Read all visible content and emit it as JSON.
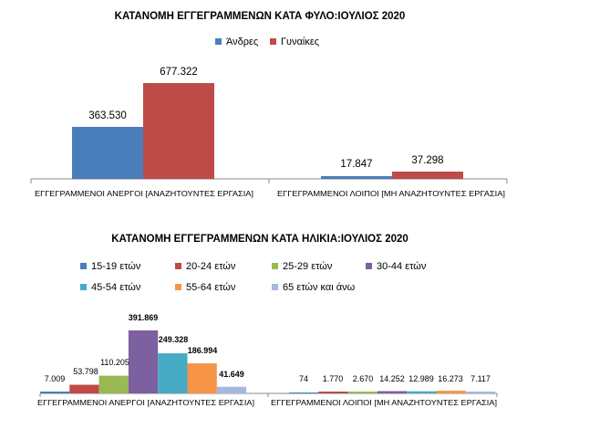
{
  "chart_data": [
    {
      "type": "bar",
      "title": "ΚΑΤΑΝΟΜΗ ΕΓΓΕΓΡΑΜΜΕΝΩΝ ΚΑΤΑ ΦΥΛΟ:ΙΟΥΛΙΟΣ  2020",
      "categories": [
        "ΕΓΓΕΓΡΑΜΜΕΝΟΙ ΑΝΕΡΓΟΙ [ΑΝΑΖΗΤΟΥΝΤΕΣ ΕΡΓΑΣΙΑ]",
        "ΕΓΓΕΓΡΑΜΜΕΝΟΙ ΛΟΙΠΟΙ [ΜΗ ΑΝΑΖΗΤΟΥΝΤΕΣ ΕΡΓΑΣΙΑ]"
      ],
      "series": [
        {
          "name": "Άνδρες",
          "values": [
            363530,
            17847
          ],
          "labels": [
            "363.530",
            "17.847"
          ],
          "color": "#4a7ebb"
        },
        {
          "name": "Γυναίκες",
          "values": [
            677322,
            37298
          ],
          "labels": [
            "677.322",
            "37.298"
          ],
          "color": "#be4b48"
        }
      ],
      "ylim": [
        0,
        750000
      ],
      "legend": "top-right",
      "grid": false
    },
    {
      "type": "bar",
      "title": "ΚΑΤΑΝΟΜΗ ΕΓΓΕΓΡΑΜΜΕΝΩΝ ΚΑΤΑ ΗΛΙΚΙΑ:ΙΟΥΛΙΟΣ 2020",
      "categories": [
        "ΕΓΓΕΓΡΑΜΜΕΝΟΙ ΑΝΕΡΓΟΙ [ΑΝΑΖΗΤΟΥΝΤΕΣ ΕΡΓΑΣΙΑ]",
        "ΕΓΓΕΓΡΑΜΜΕΝΟΙ ΛΟΙΠΟΙ [ΜΗ ΑΝΑΖΗΤΟΥΝΤΕΣ ΕΡΓΑΣΙΑ]"
      ],
      "series": [
        {
          "name": "15-19 ετών",
          "values": [
            7009,
            74
          ],
          "labels": [
            "7.009",
            "74"
          ],
          "color": "#4a7ebb"
        },
        {
          "name": "20-24 ετών",
          "values": [
            53798,
            1770
          ],
          "labels": [
            "53.798",
            "1.770"
          ],
          "color": "#be4b48"
        },
        {
          "name": "25-29 ετών",
          "values": [
            110205,
            2670
          ],
          "labels": [
            "110.205",
            "2.670"
          ],
          "color": "#98b954"
        },
        {
          "name": "30-44 ετών",
          "values": [
            391869,
            14252
          ],
          "labels": [
            "391.869",
            "14.252"
          ],
          "color": "#7d60a0"
        },
        {
          "name": "45-54 ετών",
          "values": [
            249328,
            12989
          ],
          "labels": [
            "249.328",
            "12.989"
          ],
          "color": "#46aac5"
        },
        {
          "name": "55-64 ετών",
          "values": [
            186994,
            16273
          ],
          "labels": [
            "186.994",
            "16.273"
          ],
          "color": "#f69546"
        },
        {
          "name": "65 ετών και άνω",
          "values": [
            41649,
            7117
          ],
          "labels": [
            "41.649",
            "7.117"
          ],
          "color": "#a5b8df"
        }
      ],
      "ylim": [
        0,
        450000
      ],
      "legend": "top",
      "grid": false
    }
  ]
}
